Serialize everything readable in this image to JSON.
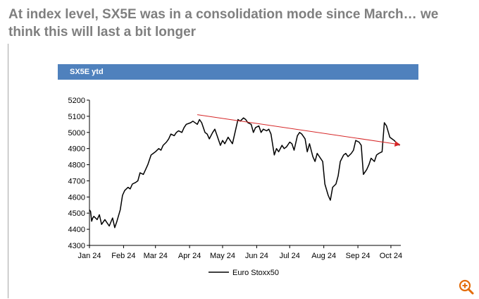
{
  "page": {
    "headline": "At index level, SX5E was in a consolidation mode since March… we think this will last a bit longer"
  },
  "chart_banner": {
    "title": "SX5E ytd"
  },
  "chart_data": {
    "type": "line",
    "title": "SX5E ytd",
    "xlabel": "",
    "ylabel": "",
    "ylim": [
      4300,
      5200
    ],
    "yticks": [
      4300,
      4400,
      4500,
      4600,
      4700,
      4800,
      4900,
      5000,
      5100,
      5200
    ],
    "xlim": [
      "2024-01-01",
      "2024-10-10"
    ],
    "xtick_dates": [
      "2024-01-01",
      "2024-02-01",
      "2024-03-01",
      "2024-04-01",
      "2024-05-01",
      "2024-06-01",
      "2024-07-01",
      "2024-08-01",
      "2024-09-01",
      "2024-10-01"
    ],
    "xtick_labels": [
      "Jan 24",
      "Feb 24",
      "Mar 24",
      "Apr 24",
      "May 24",
      "Jun 24",
      "Jul 24",
      "Aug 24",
      "Sep 24",
      "Oct 24"
    ],
    "grid": false,
    "legend_position": "bottom",
    "series": [
      {
        "name": "Euro Stoxx50",
        "color": "#000000",
        "x": [
          "2024-01-01",
          "2024-01-02",
          "2024-01-03",
          "2024-01-04",
          "2024-01-05",
          "2024-01-08",
          "2024-01-10",
          "2024-01-12",
          "2024-01-15",
          "2024-01-17",
          "2024-01-19",
          "2024-01-22",
          "2024-01-24",
          "2024-01-26",
          "2024-01-29",
          "2024-01-31",
          "2024-02-02",
          "2024-02-05",
          "2024-02-07",
          "2024-02-09",
          "2024-02-12",
          "2024-02-14",
          "2024-02-16",
          "2024-02-19",
          "2024-02-21",
          "2024-02-23",
          "2024-02-26",
          "2024-02-28",
          "2024-03-01",
          "2024-03-04",
          "2024-03-06",
          "2024-03-08",
          "2024-03-11",
          "2024-03-13",
          "2024-03-15",
          "2024-03-18",
          "2024-03-20",
          "2024-03-22",
          "2024-03-25",
          "2024-03-27",
          "2024-03-29",
          "2024-04-02",
          "2024-04-04",
          "2024-04-08",
          "2024-04-10",
          "2024-04-12",
          "2024-04-15",
          "2024-04-17",
          "2024-04-19",
          "2024-04-22",
          "2024-04-24",
          "2024-04-26",
          "2024-04-29",
          "2024-05-01",
          "2024-05-03",
          "2024-05-06",
          "2024-05-08",
          "2024-05-10",
          "2024-05-13",
          "2024-05-15",
          "2024-05-17",
          "2024-05-20",
          "2024-05-22",
          "2024-05-24",
          "2024-05-27",
          "2024-05-29",
          "2024-05-31",
          "2024-06-03",
          "2024-06-05",
          "2024-06-07",
          "2024-06-10",
          "2024-06-12",
          "2024-06-14",
          "2024-06-17",
          "2024-06-19",
          "2024-06-21",
          "2024-06-24",
          "2024-06-26",
          "2024-06-28",
          "2024-07-01",
          "2024-07-03",
          "2024-07-05",
          "2024-07-08",
          "2024-07-10",
          "2024-07-12",
          "2024-07-15",
          "2024-07-17",
          "2024-07-19",
          "2024-07-22",
          "2024-07-24",
          "2024-07-26",
          "2024-07-29",
          "2024-07-31",
          "2024-08-02",
          "2024-08-05",
          "2024-08-07",
          "2024-08-09",
          "2024-08-12",
          "2024-08-14",
          "2024-08-16",
          "2024-08-19",
          "2024-08-21",
          "2024-08-23",
          "2024-08-26",
          "2024-08-28",
          "2024-08-30",
          "2024-09-02",
          "2024-09-04",
          "2024-09-06",
          "2024-09-09",
          "2024-09-11",
          "2024-09-13",
          "2024-09-16",
          "2024-09-18",
          "2024-09-20",
          "2024-09-23",
          "2024-09-25",
          "2024-09-27",
          "2024-09-30",
          "2024-10-02",
          "2024-10-04",
          "2024-10-07",
          "2024-10-09"
        ],
        "y": [
          4520,
          4510,
          4450,
          4470,
          4480,
          4460,
          4490,
          4430,
          4460,
          4440,
          4420,
          4470,
          4410,
          4450,
          4520,
          4610,
          4640,
          4660,
          4650,
          4680,
          4690,
          4700,
          4750,
          4740,
          4770,
          4800,
          4860,
          4870,
          4880,
          4900,
          4890,
          4920,
          4940,
          4960,
          4990,
          4980,
          5000,
          5010,
          5000,
          5030,
          5050,
          5060,
          5070,
          5050,
          5080,
          5060,
          5000,
          4990,
          4960,
          5000,
          5020,
          4980,
          4920,
          4950,
          4930,
          4970,
          4950,
          4930,
          5020,
          5080,
          5070,
          5090,
          5080,
          5060,
          5050,
          5000,
          5030,
          5040,
          5000,
          5020,
          5010,
          5020,
          4990,
          4860,
          4900,
          4880,
          4920,
          4900,
          4910,
          4940,
          4930,
          4890,
          4980,
          5000,
          4990,
          4960,
          4880,
          4930,
          4850,
          4820,
          4870,
          4840,
          4820,
          4680,
          4610,
          4580,
          4660,
          4680,
          4730,
          4820,
          4860,
          4870,
          4850,
          4870,
          4890,
          4950,
          4940,
          4920,
          4740,
          4770,
          4800,
          4840,
          4820,
          4860,
          4870,
          4880,
          5060,
          5040,
          4970,
          4960,
          4950,
          4930,
          4920
        ]
      }
    ],
    "annotations": [
      {
        "type": "trend-arrow",
        "color": "#d62728",
        "x": [
          "2024-04-08",
          "2024-10-09"
        ],
        "y": [
          5110,
          4925
        ]
      }
    ]
  },
  "icons": {
    "zoom": "zoom-in-icon",
    "zoom_color": "#e36c0a"
  }
}
